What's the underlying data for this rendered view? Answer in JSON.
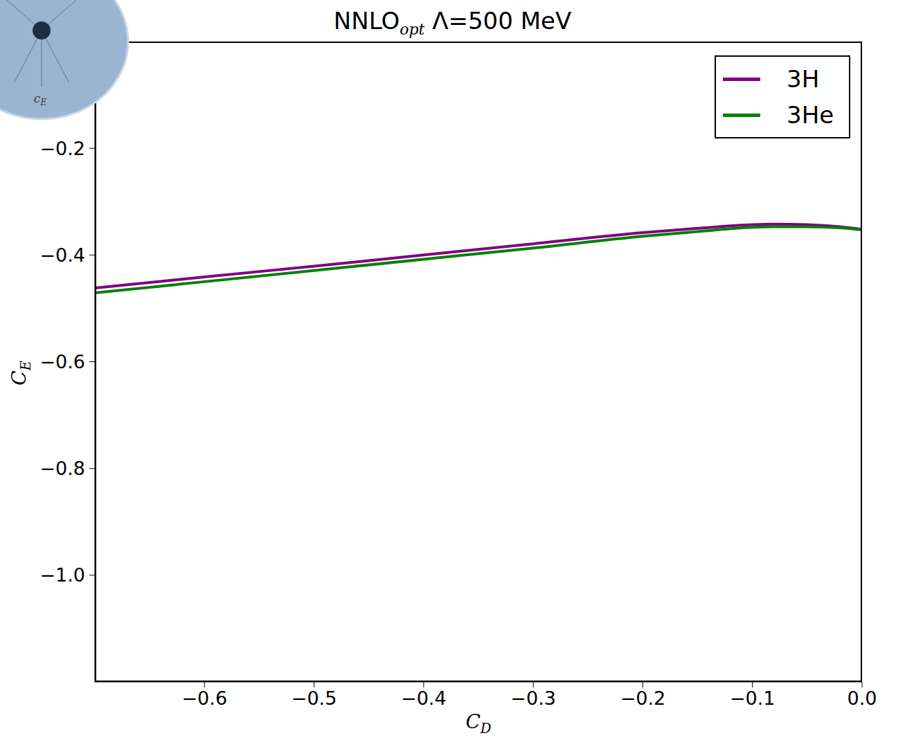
{
  "chart_data": {
    "type": "line",
    "title": "NNLOopt Λ=500 MeV",
    "x_label": "CD",
    "y_label": "CE",
    "annotations": [
      "cE"
    ],
    "x": [
      -0.7,
      -0.6,
      -0.5,
      -0.4,
      -0.3,
      -0.2,
      -0.15,
      -0.1,
      -0.08,
      -0.05,
      -0.02,
      0.0
    ],
    "series": [
      {
        "name": "3H",
        "color": "#800080",
        "values": [
          -0.462,
          -0.441,
          -0.421,
          -0.4,
          -0.379,
          -0.358,
          -0.35,
          -0.343,
          -0.342,
          -0.343,
          -0.347,
          -0.352
        ]
      },
      {
        "name": "3He",
        "color": "#008000",
        "values": [
          -0.471,
          -0.45,
          -0.429,
          -0.408,
          -0.387,
          -0.365,
          -0.356,
          -0.348,
          -0.347,
          -0.347,
          -0.349,
          -0.353
        ]
      }
    ],
    "xlim": [
      -0.7,
      0.0
    ],
    "ylim": [
      -1.2,
      0.0
    ],
    "xticks": [
      {
        "value": -0.6,
        "label": "−0.6"
      },
      {
        "value": -0.5,
        "label": "−0.5"
      },
      {
        "value": -0.4,
        "label": "−0.4"
      },
      {
        "value": -0.3,
        "label": "−0.3"
      },
      {
        "value": -0.2,
        "label": "−0.2"
      },
      {
        "value": -0.1,
        "label": "−0.1"
      },
      {
        "value": 0.0,
        "label": "0.0"
      }
    ],
    "yticks": [
      {
        "value": -1.0,
        "label": "−1.0"
      },
      {
        "value": -0.8,
        "label": "−0.8"
      },
      {
        "value": -0.6,
        "label": "−0.6"
      },
      {
        "value": -0.4,
        "label": "−0.4"
      },
      {
        "value": -0.2,
        "label": "−0.2"
      }
    ],
    "grid": false,
    "legend": "top-right"
  }
}
